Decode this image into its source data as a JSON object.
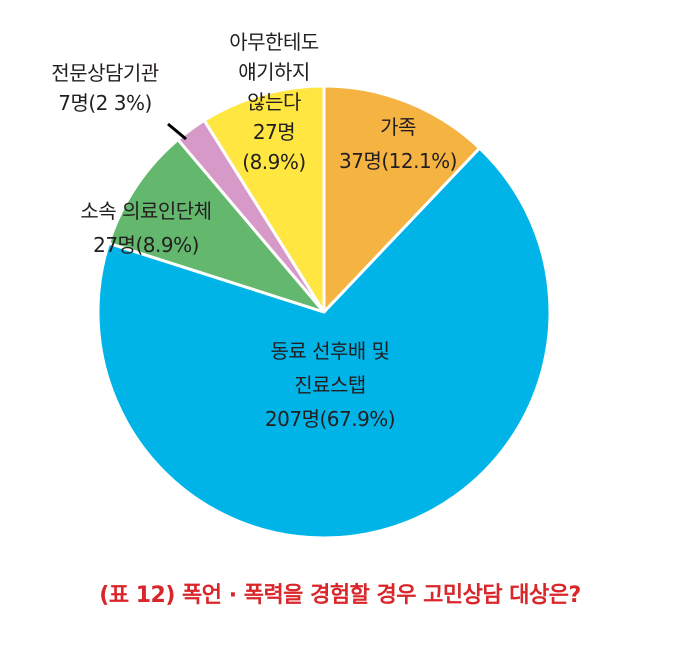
{
  "chart_data": {
    "type": "pie",
    "title": "(표 12)  폭언 · 폭력을 경험할 경우 고민상담 대상은?",
    "start_angle_deg": 0,
    "direction": "clockwise",
    "slices": [
      {
        "lines": [
          "가족",
          "37명(12.1%)"
        ],
        "count": 37,
        "percent": 12.1,
        "color": "#f5b342"
      },
      {
        "lines": [
          "동료 선후배 및",
          "진료스탭",
          "207명(67.9%)"
        ],
        "count": 207,
        "percent": 67.9,
        "color": "#00b4e8"
      },
      {
        "lines": [
          "소속 의료인단체",
          "27명(8.9%)"
        ],
        "count": 27,
        "percent": 8.9,
        "color": "#63b86e"
      },
      {
        "lines": [
          "전문상담기관",
          "7명(2 3%)"
        ],
        "count": 7,
        "percent": 2.3,
        "color": "#d79ac8"
      },
      {
        "lines": [
          "아무한테도",
          "얘기하지",
          "않는다",
          "27명",
          "(8.9%)"
        ],
        "count": 27,
        "percent": 8.9,
        "color": "#ffe640"
      }
    ],
    "title_color": "#d9262a",
    "text_color": "#231f20"
  }
}
